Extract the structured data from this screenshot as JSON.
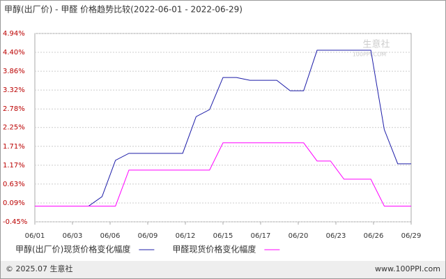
{
  "chart_data": {
    "type": "line",
    "title": "甲醇(出厂价) - 甲醛 价格趋势比较(2022-06-01 - 2022-06-29)",
    "x": [
      1,
      2,
      3,
      4,
      5,
      6,
      7,
      8,
      9,
      10,
      11,
      12,
      13,
      14,
      15,
      16,
      17,
      18,
      19,
      20,
      21,
      22,
      23,
      24,
      25,
      26,
      27,
      28,
      29
    ],
    "series": [
      {
        "name": "甲醇(出厂价)现货价格变化幅度",
        "color": "#1c1ca8",
        "values": [
          0,
          0,
          0,
          0,
          0,
          0.27,
          1.31,
          1.51,
          1.51,
          1.51,
          1.51,
          1.51,
          2.56,
          2.76,
          3.68,
          3.68,
          3.6,
          3.6,
          3.6,
          3.3,
          3.3,
          4.46,
          4.46,
          4.46,
          4.46,
          4.46,
          2.19,
          1.21,
          1.21
        ]
      },
      {
        "name": "甲醛现货价格变化幅度",
        "color": "#ff00ff",
        "values": [
          0,
          0,
          0,
          0,
          0,
          0,
          0,
          1.03,
          1.03,
          1.03,
          1.03,
          1.03,
          1.03,
          1.03,
          1.81,
          1.81,
          1.81,
          1.81,
          1.81,
          1.81,
          1.81,
          1.29,
          1.29,
          0.77,
          0.77,
          0.77,
          0,
          0,
          0
        ]
      }
    ],
    "xlim": [
      1,
      29
    ],
    "xticks": [
      {
        "value": 1,
        "label": "06/01"
      },
      {
        "value": 3.8,
        "label": "06/03"
      },
      {
        "value": 6.6,
        "label": "06/06"
      },
      {
        "value": 9.4,
        "label": "06/09"
      },
      {
        "value": 12.2,
        "label": "06/12"
      },
      {
        "value": 15,
        "label": "06/15"
      },
      {
        "value": 17.8,
        "label": "06/17"
      },
      {
        "value": 20.6,
        "label": "06/20"
      },
      {
        "value": 23.4,
        "label": "06/23"
      },
      {
        "value": 26.2,
        "label": "06/26"
      },
      {
        "value": 29,
        "label": "06/29"
      }
    ],
    "ylim": [
      -0.45,
      4.94
    ],
    "yticks": [
      {
        "value": -0.45,
        "label": "-0.45%"
      },
      {
        "value": 0.09,
        "label": "0.09%"
      },
      {
        "value": 0.63,
        "label": "0.63%"
      },
      {
        "value": 1.17,
        "label": "1.17%"
      },
      {
        "value": 1.71,
        "label": "1.71%"
      },
      {
        "value": 2.25,
        "label": "2.25%"
      },
      {
        "value": 2.78,
        "label": "2.78%"
      },
      {
        "value": 3.32,
        "label": "3.32%"
      },
      {
        "value": 3.86,
        "label": "3.86%"
      },
      {
        "value": 4.4,
        "label": "4.40%"
      },
      {
        "value": 4.94,
        "label": "4.94%"
      }
    ],
    "grid": true,
    "watermark": [
      "生意社",
      "100PPI.COM"
    ],
    "footer": {
      "left": "© 2025.07 生意社",
      "right": "www.100PPI.com"
    }
  }
}
